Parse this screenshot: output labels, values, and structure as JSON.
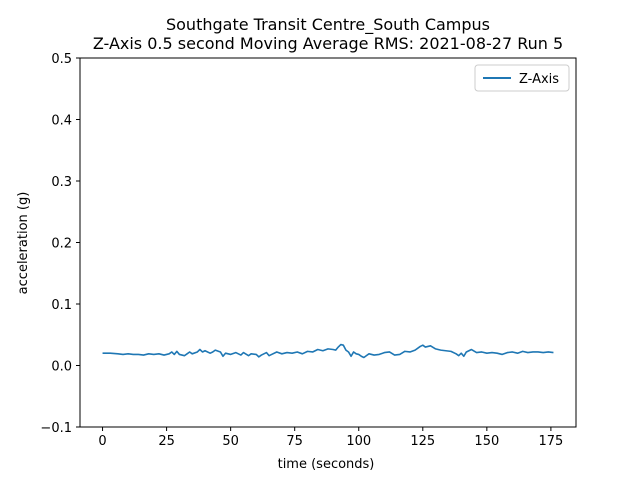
{
  "chart_data": {
    "type": "line",
    "title": "Southgate Transit Centre_South Campus",
    "subtitle": "Z-Axis 0.5 second Moving Average RMS: 2021-08-27 Run 5",
    "xlabel": "time (seconds)",
    "ylabel": "acceleration (g)",
    "xlim": [
      -8.8,
      184.8
    ],
    "ylim": [
      -0.1,
      0.5
    ],
    "xticks": [
      0,
      25,
      50,
      75,
      100,
      125,
      150,
      175
    ],
    "xtick_labels": [
      "0",
      "25",
      "50",
      "75",
      "100",
      "125",
      "150",
      "175"
    ],
    "yticks": [
      -0.1,
      0.0,
      0.1,
      0.2,
      0.3,
      0.4,
      0.5
    ],
    "ytick_labels": [
      "−0.1",
      "0.0",
      "0.1",
      "0.2",
      "0.3",
      "0.4",
      "0.5"
    ],
    "grid": false,
    "legend_position": "top-right",
    "series": [
      {
        "name": "Z-Axis",
        "color": "#1f77b4",
        "x": [
          0,
          3,
          6,
          8,
          10,
          12,
          14,
          16,
          18,
          20,
          22,
          24,
          26,
          27,
          28,
          29,
          30,
          32,
          33,
          34,
          35,
          37,
          38,
          39,
          40,
          42,
          43,
          44,
          46,
          47,
          48,
          50,
          52,
          54,
          55,
          57,
          58,
          60,
          61,
          62,
          64,
          65,
          66,
          68,
          70,
          72,
          74,
          76,
          78,
          80,
          82,
          84,
          86,
          88,
          90,
          91,
          92,
          93,
          94,
          95,
          96,
          97,
          98,
          99,
          100,
          101,
          102,
          103,
          104,
          106,
          108,
          110,
          112,
          114,
          116,
          118,
          120,
          122,
          124,
          125,
          126,
          128,
          130,
          132,
          134,
          136,
          138,
          139,
          140,
          141,
          142,
          144,
          146,
          148,
          150,
          152,
          154,
          156,
          158,
          160,
          162,
          164,
          166,
          168,
          170,
          172,
          174,
          176
        ],
        "values": [
          0.02,
          0.02,
          0.019,
          0.018,
          0.019,
          0.018,
          0.018,
          0.017,
          0.019,
          0.018,
          0.019,
          0.017,
          0.019,
          0.022,
          0.018,
          0.023,
          0.018,
          0.016,
          0.019,
          0.022,
          0.019,
          0.022,
          0.026,
          0.022,
          0.024,
          0.02,
          0.022,
          0.025,
          0.022,
          0.015,
          0.02,
          0.018,
          0.021,
          0.017,
          0.021,
          0.016,
          0.019,
          0.018,
          0.014,
          0.017,
          0.021,
          0.016,
          0.018,
          0.022,
          0.019,
          0.021,
          0.02,
          0.022,
          0.019,
          0.023,
          0.022,
          0.026,
          0.024,
          0.027,
          0.026,
          0.025,
          0.03,
          0.034,
          0.033,
          0.025,
          0.022,
          0.015,
          0.022,
          0.019,
          0.018,
          0.015,
          0.013,
          0.016,
          0.019,
          0.017,
          0.018,
          0.021,
          0.022,
          0.017,
          0.018,
          0.023,
          0.022,
          0.025,
          0.031,
          0.033,
          0.03,
          0.032,
          0.027,
          0.025,
          0.024,
          0.023,
          0.019,
          0.016,
          0.02,
          0.015,
          0.022,
          0.026,
          0.021,
          0.022,
          0.02,
          0.021,
          0.02,
          0.018,
          0.021,
          0.022,
          0.02,
          0.023,
          0.021,
          0.022,
          0.022,
          0.021,
          0.022,
          0.021
        ]
      }
    ]
  }
}
